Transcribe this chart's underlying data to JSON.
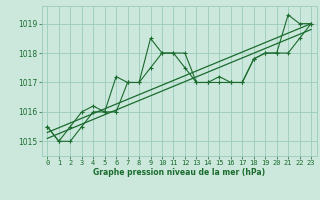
{
  "title": "Graphe pression niveau de la mer (hPa)",
  "bg_color": "#cce8dc",
  "grid_color": "#99ccbb",
  "line_color": "#1a6b2e",
  "xlim": [
    -0.5,
    23.5
  ],
  "ylim": [
    1014.5,
    1019.6
  ],
  "yticks": [
    1015,
    1016,
    1017,
    1018,
    1019
  ],
  "xticks": [
    0,
    1,
    2,
    3,
    4,
    5,
    6,
    7,
    8,
    9,
    10,
    11,
    12,
    13,
    14,
    15,
    16,
    17,
    18,
    19,
    20,
    21,
    22,
    23
  ],
  "series_jagged1": [
    1015.5,
    1015.0,
    1015.0,
    1015.5,
    1016.0,
    1016.0,
    1017.2,
    1017.0,
    1017.0,
    1018.5,
    1018.0,
    1018.0,
    1018.0,
    1017.0,
    1017.0,
    1017.0,
    1017.0,
    1017.0,
    1017.8,
    1018.0,
    1018.0,
    1019.3,
    1019.0,
    1019.0
  ],
  "series_jagged2": [
    1015.5,
    1015.0,
    1015.5,
    1016.0,
    1016.2,
    1016.0,
    1016.0,
    1017.0,
    1017.0,
    1017.5,
    1018.0,
    1018.0,
    1017.5,
    1017.0,
    1017.0,
    1017.2,
    1017.0,
    1017.0,
    1017.8,
    1018.0,
    1018.0,
    1018.0,
    1018.5,
    1019.0
  ],
  "trend1_x": [
    0,
    23
  ],
  "trend1_y": [
    1015.3,
    1019.0
  ],
  "trend2_x": [
    0,
    23
  ],
  "trend2_y": [
    1015.1,
    1018.8
  ],
  "ylabel_fontsize": 5.5,
  "xlabel_fontsize": 5.5,
  "tick_labelsize": 5.0
}
